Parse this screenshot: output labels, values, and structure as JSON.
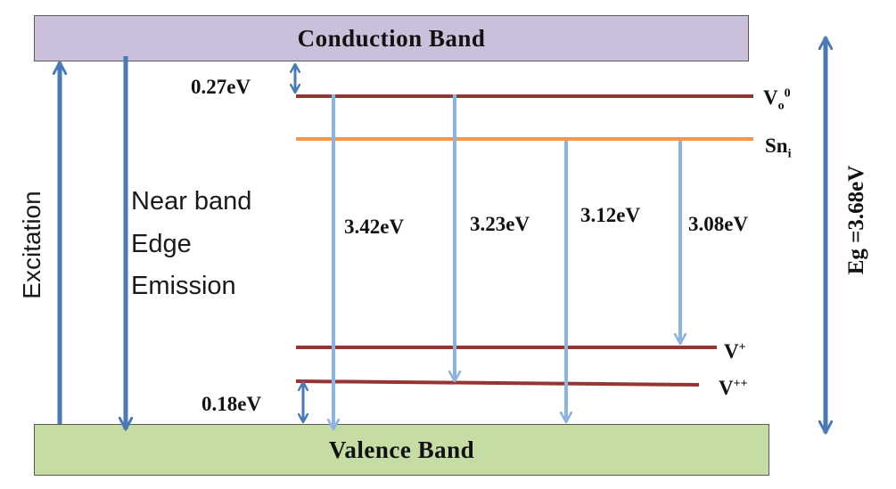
{
  "bands": {
    "conduction": "Conduction Band",
    "valence": "Valence Band"
  },
  "levels": {
    "vo0": {
      "base": "V",
      "sub": "o",
      "sup": "0"
    },
    "sni": {
      "base": "Sn",
      "sub": "i"
    },
    "vplus": {
      "base": "V",
      "sup": "+"
    },
    "vplusplus": {
      "base": "V",
      "sup": "++"
    }
  },
  "energies": {
    "top_gap": "0.27eV",
    "bottom_gap": "0.18eV",
    "t1": "3.42eV",
    "t2": "3.23eV",
    "t3": "3.12eV",
    "t4": "3.08eV",
    "band_gap": "Eg =3.68eV"
  },
  "processes": {
    "excitation": "Excitation",
    "nbe_line1": "Near band",
    "nbe_line2": "Edge",
    "nbe_line3": "Emission"
  },
  "colors": {
    "dark_arrow": "#4a7ab5",
    "light_arrow": "#8db3e2",
    "defect_level": "#943634",
    "sn_level": "#f79646",
    "conduction_fill": "#cbc0dc",
    "valence_fill": "#c5dca3"
  }
}
